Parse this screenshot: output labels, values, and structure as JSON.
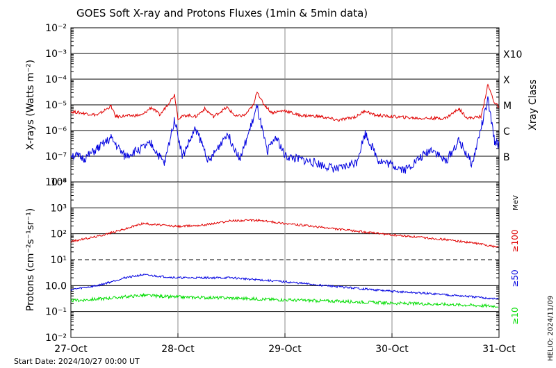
{
  "title": "GOES Soft X-ray and Protons Fluxes   (1min & 5min data)",
  "footer": {
    "start_date": "Start Date: 2024/10/27 00:00 UT",
    "helio": "HELIO: 2024/11/09"
  },
  "colors": {
    "red": "#e00000",
    "blue": "#0000e0",
    "green": "#00dd00",
    "black": "#000000",
    "grid": "#888888"
  },
  "chart_data": [
    {
      "type": "line",
      "title": "",
      "ylabel": "X-rays (Watts m⁻²)",
      "y2label": "Xray Class",
      "yscale": "log",
      "ylim": [
        1e-08,
        0.01
      ],
      "xlim": [
        "2024-10-27",
        "2024-10-31"
      ],
      "x_ticks": [
        "27-Oct",
        "28-Oct",
        "29-Oct",
        "30-Oct",
        "31-Oct"
      ],
      "y_ticks": [
        "10⁻²",
        "10⁻³",
        "10⁻⁴",
        "10⁻⁵",
        "10⁻⁶",
        "10⁻⁷",
        "10⁻⁸"
      ],
      "class_labels": [
        {
          "label": "X10",
          "value": 0.001
        },
        {
          "label": "X",
          "value": 0.0001
        },
        {
          "label": "M",
          "value": 1e-05
        },
        {
          "label": "C",
          "value": 1e-06
        },
        {
          "label": "B",
          "value": 1e-07
        }
      ],
      "grid": "horizontal at decades, vertical at day boundaries",
      "series": [
        {
          "color": "red",
          "points": [
            [
              "2024-10-27 00:00",
              5.5e-06
            ],
            [
              "2024-10-27 06:00",
              4e-06
            ],
            [
              "2024-10-27 09:00",
              9e-06
            ],
            [
              "2024-10-27 10:00",
              3.5e-06
            ],
            [
              "2024-10-27 16:00",
              4e-06
            ],
            [
              "2024-10-27 18:00",
              8e-06
            ],
            [
              "2024-10-27 20:00",
              4e-06
            ],
            [
              "2024-10-28 00:00",
              3e-06
            ],
            [
              "2024-10-27 23:15",
              2.5e-05
            ],
            [
              "2024-10-28 02:00",
              4e-06
            ],
            [
              "2024-10-28 04:00",
              3.5e-06
            ],
            [
              "2024-10-28 06:00",
              7e-06
            ],
            [
              "2024-10-28 08:00",
              3.5e-06
            ],
            [
              "2024-10-28 11:00",
              8e-06
            ],
            [
              "2024-10-28 13:00",
              3.5e-06
            ],
            [
              "2024-10-28 15:00",
              4e-06
            ],
            [
              "2024-10-28 17:00",
              1e-05
            ],
            [
              "2024-10-28 17:45",
              3.5e-05
            ],
            [
              "2024-10-28 19:00",
              1.2e-05
            ],
            [
              "2024-10-28 21:00",
              5e-06
            ],
            [
              "2024-10-29 00:00",
              6e-06
            ],
            [
              "2024-10-29 03:00",
              4e-06
            ],
            [
              "2024-10-29 08:00",
              3.5e-06
            ],
            [
              "2024-10-29 12:00",
              2.5e-06
            ],
            [
              "2024-10-29 16:00",
              3.5e-06
            ],
            [
              "2024-10-29 18:00",
              6e-06
            ],
            [
              "2024-10-29 20:00",
              4e-06
            ],
            [
              "2024-10-30 00:00",
              3.5e-06
            ],
            [
              "2024-10-30 06:00",
              3e-06
            ],
            [
              "2024-10-30 12:00",
              3e-06
            ],
            [
              "2024-10-30 15:00",
              7e-06
            ],
            [
              "2024-10-30 17:00",
              3e-06
            ],
            [
              "2024-10-30 20:00",
              3.5e-06
            ],
            [
              "2024-10-30 21:30",
              6e-05
            ],
            [
              "2024-10-30 23:00",
              1.2e-05
            ],
            [
              "2024-10-31 00:00",
              8e-06
            ]
          ]
        },
        {
          "color": "blue",
          "points": [
            [
              "2024-10-27 00:00",
              1.2e-07
            ],
            [
              "2024-10-27 03:00",
              8e-08
            ],
            [
              "2024-10-27 06:00",
              2e-07
            ],
            [
              "2024-10-27 09:00",
              5e-07
            ],
            [
              "2024-10-27 12:00",
              1e-07
            ],
            [
              "2024-10-27 18:00",
              3e-07
            ],
            [
              "2024-10-27 21:00",
              5e-08
            ],
            [
              "2024-10-27 23:15",
              3e-06
            ],
            [
              "2024-10-28 01:00",
              1e-07
            ],
            [
              "2024-10-28 04:00",
              1.2e-06
            ],
            [
              "2024-10-28 07:00",
              6e-08
            ],
            [
              "2024-10-28 11:00",
              8e-07
            ],
            [
              "2024-10-28 14:00",
              8e-08
            ],
            [
              "2024-10-28 17:45",
              8e-06
            ],
            [
              "2024-10-28 20:00",
              1.5e-07
            ],
            [
              "2024-10-28 22:00",
              6e-07
            ],
            [
              "2024-10-29 00:00",
              1e-07
            ],
            [
              "2024-10-29 06:00",
              6e-08
            ],
            [
              "2024-10-29 12:00",
              3e-08
            ],
            [
              "2024-10-29 16:00",
              6e-08
            ],
            [
              "2024-10-29 18:00",
              8e-07
            ],
            [
              "2024-10-29 21:00",
              7e-08
            ],
            [
              "2024-10-30 03:00",
              3e-08
            ],
            [
              "2024-10-30 09:00",
              2e-07
            ],
            [
              "2024-10-30 12:00",
              6e-08
            ],
            [
              "2024-10-30 15:00",
              4e-07
            ],
            [
              "2024-10-30 18:00",
              5e-08
            ],
            [
              "2024-10-30 21:30",
              1.5e-05
            ],
            [
              "2024-10-30 23:00",
              4e-07
            ],
            [
              "2024-10-31 00:00",
              2.5e-07
            ]
          ]
        }
      ]
    },
    {
      "type": "line",
      "title": "",
      "ylabel": "Protons (cm⁻²s⁻¹sr⁻¹)",
      "yscale": "log",
      "ylim": [
        0.01,
        10000
      ],
      "xlim": [
        "2024-10-27",
        "2024-10-31"
      ],
      "x_ticks": [
        "27-Oct",
        "28-Oct",
        "29-Oct",
        "30-Oct",
        "31-Oct"
      ],
      "y_ticks": [
        "10⁴",
        "10³",
        "10²",
        "10¹",
        "10.0",
        "10⁻¹",
        "10⁻²"
      ],
      "threshold": {
        "value": 10,
        "style": "dashed"
      },
      "unit_label": "MeV",
      "series": [
        {
          "name": "≥100",
          "color": "red",
          "points": [
            [
              "2024-10-27 00:00",
              50
            ],
            [
              "2024-10-27 06:00",
              80
            ],
            [
              "2024-10-27 12:00",
              150
            ],
            [
              "2024-10-27 16:00",
              250
            ],
            [
              "2024-10-28 00:00",
              190
            ],
            [
              "2024-10-28 06:00",
              220
            ],
            [
              "2024-10-28 12:00",
              320
            ],
            [
              "2024-10-28 18:00",
              330
            ],
            [
              "2024-10-29 00:00",
              250
            ],
            [
              "2024-10-29 12:00",
              150
            ],
            [
              "2024-10-30 00:00",
              90
            ],
            [
              "2024-10-30 12:00",
              60
            ],
            [
              "2024-10-30 20:00",
              40
            ],
            [
              "2024-10-31 00:00",
              30
            ]
          ]
        },
        {
          "name": "≥50",
          "color": "blue",
          "points": [
            [
              "2024-10-27 00:00",
              0.7
            ],
            [
              "2024-10-27 06:00",
              1.0
            ],
            [
              "2024-10-27 12:00",
              2.0
            ],
            [
              "2024-10-27 16:00",
              2.6
            ],
            [
              "2024-10-28 00:00",
              2.0
            ],
            [
              "2024-10-28 12:00",
              2.0
            ],
            [
              "2024-10-29 00:00",
              1.4
            ],
            [
              "2024-10-29 12:00",
              0.9
            ],
            [
              "2024-10-30 00:00",
              0.6
            ],
            [
              "2024-10-30 12:00",
              0.45
            ],
            [
              "2024-10-31 00:00",
              0.3
            ]
          ]
        },
        {
          "name": "≥10",
          "color": "green",
          "points": [
            [
              "2024-10-27 00:00",
              0.26
            ],
            [
              "2024-10-27 08:00",
              0.32
            ],
            [
              "2024-10-27 16:00",
              0.42
            ],
            [
              "2024-10-28 00:00",
              0.36
            ],
            [
              "2024-10-28 12:00",
              0.33
            ],
            [
              "2024-10-29 00:00",
              0.28
            ],
            [
              "2024-10-29 12:00",
              0.25
            ],
            [
              "2024-10-30 00:00",
              0.21
            ],
            [
              "2024-10-30 12:00",
              0.19
            ],
            [
              "2024-10-31 00:00",
              0.16
            ]
          ]
        }
      ]
    }
  ]
}
